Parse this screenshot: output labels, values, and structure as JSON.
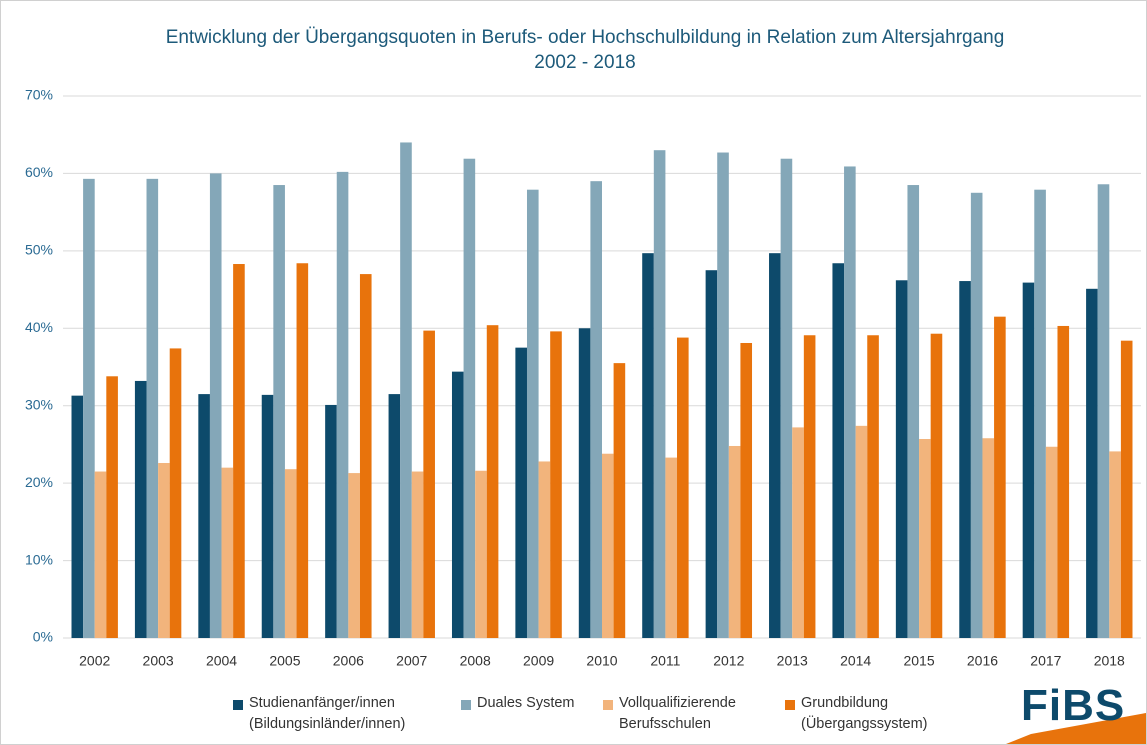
{
  "chart_data": {
    "type": "bar",
    "title": "Entwicklung der Übergangsquoten in Berufs- oder Hochschulbildung in Relation zum Altersjahrgang",
    "subtitle": "2002 - 2018",
    "categories": [
      "2002",
      "2003",
      "2004",
      "2005",
      "2006",
      "2007",
      "2008",
      "2009",
      "2010",
      "2011",
      "2012",
      "2013",
      "2014",
      "2015",
      "2016",
      "2017",
      "2018"
    ],
    "series": [
      {
        "name": "Studienanfänger/innen\n(Bildungsinländer/innen)",
        "color": "#0d4a6b",
        "values": [
          31.3,
          33.2,
          31.5,
          31.4,
          30.1,
          31.5,
          34.4,
          37.5,
          40.0,
          49.7,
          47.5,
          49.7,
          48.4,
          46.2,
          46.1,
          45.9,
          45.1
        ]
      },
      {
        "name": "Duales System",
        "color": "#84a7b8",
        "values": [
          59.3,
          59.3,
          60.0,
          58.5,
          60.2,
          64.0,
          61.9,
          57.9,
          59.0,
          63.0,
          62.7,
          61.9,
          60.9,
          58.5,
          57.5,
          57.9,
          58.6
        ]
      },
      {
        "name": "Vollqualifizierende\nBerufsschulen",
        "color": "#f2b47c",
        "values": [
          21.5,
          22.6,
          22.0,
          21.8,
          21.3,
          21.5,
          21.6,
          22.8,
          23.8,
          23.3,
          24.8,
          27.2,
          27.4,
          25.7,
          25.8,
          24.7,
          24.1
        ]
      },
      {
        "name": "Grundbildung\n(Übergangssystem)",
        "color": "#e8730c",
        "values": [
          33.8,
          37.4,
          48.3,
          48.4,
          47.0,
          39.7,
          40.4,
          39.6,
          35.5,
          38.8,
          38.1,
          39.1,
          39.1,
          39.3,
          41.5,
          40.3,
          38.4
        ]
      }
    ],
    "ylim": [
      0,
      70
    ],
    "yticks": [
      {
        "value": 0,
        "label": "0%"
      },
      {
        "value": 10,
        "label": "10%"
      },
      {
        "value": 20,
        "label": "20%"
      },
      {
        "value": 30,
        "label": "30%"
      },
      {
        "value": 40,
        "label": "40%"
      },
      {
        "value": 50,
        "label": "50%"
      },
      {
        "value": 60,
        "label": "60%"
      },
      {
        "value": 70,
        "label": "70%"
      }
    ],
    "grid": true,
    "logo": "FiBS"
  }
}
